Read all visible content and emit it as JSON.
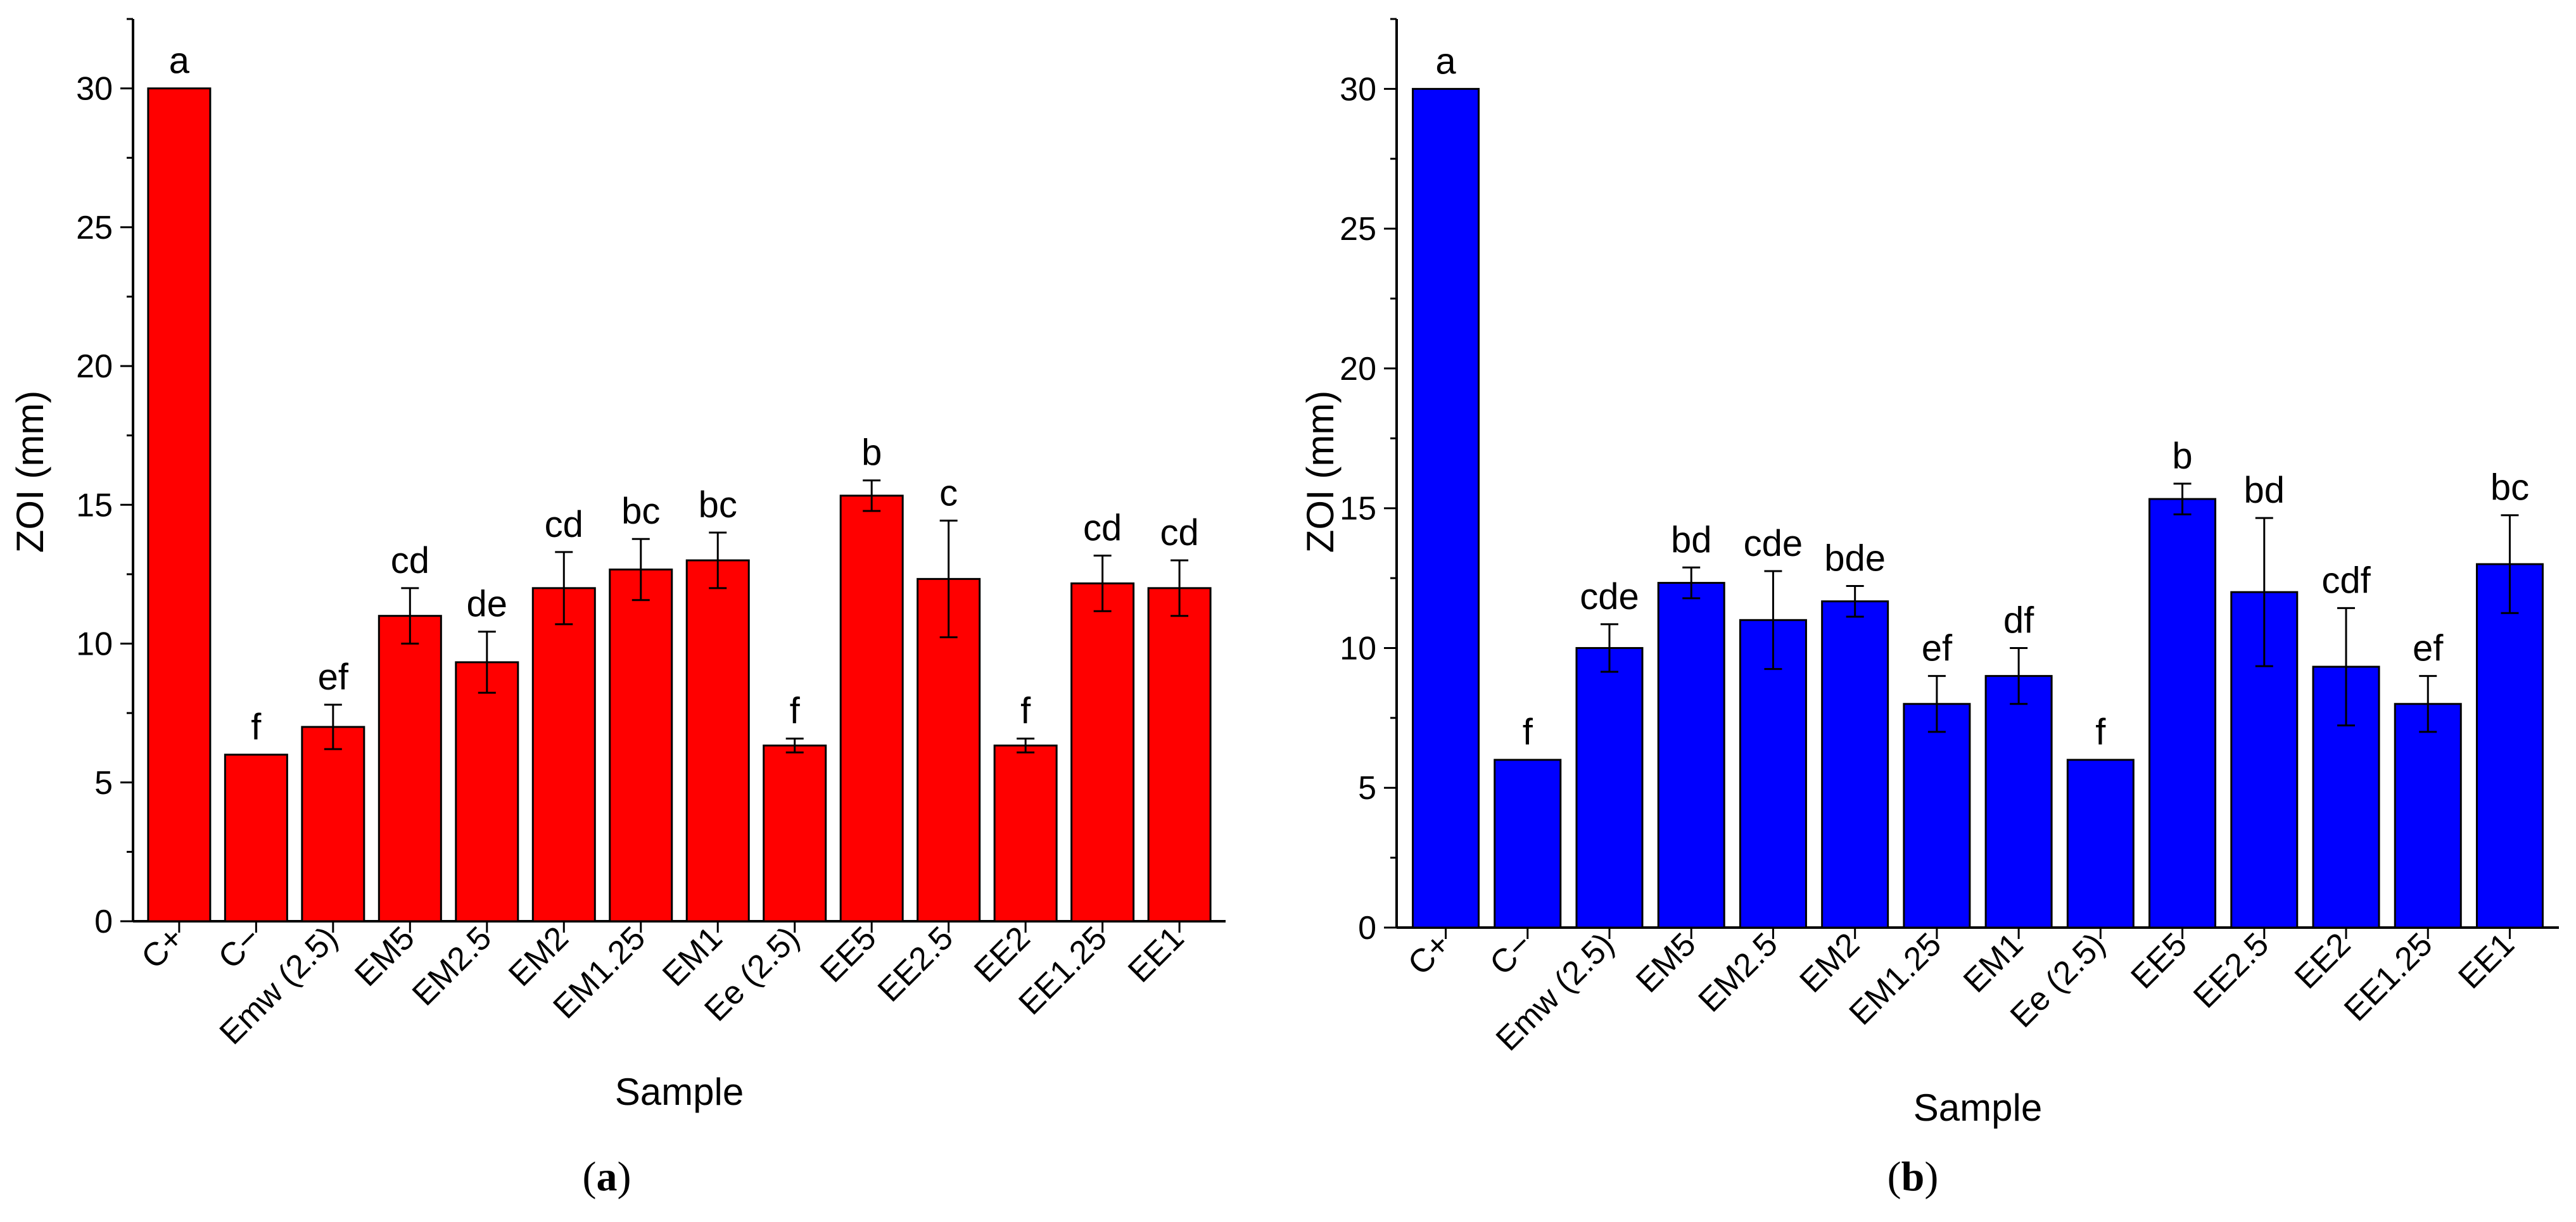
{
  "chart_data": [
    {
      "panel": "(a)",
      "panel_letter": "a",
      "type": "bar",
      "xlabel": "Sample",
      "ylabel": "ZOI (mm)",
      "ylim": [
        0,
        32.5
      ],
      "yticks": [
        0,
        5,
        10,
        15,
        20,
        25,
        30
      ],
      "bar_color": "#ff0000",
      "categories": [
        "C+",
        "C−",
        "Emw (2.5)",
        "EM5",
        "EM2.5",
        "EM2",
        "EM1.25",
        "EM1",
        "Ee (2.5)",
        "EE5",
        "EE2.5",
        "EE2",
        "EE1.25",
        "EE1"
      ],
      "values": [
        30,
        6,
        7,
        11,
        9.33,
        12,
        12.67,
        13,
        6.33,
        15.33,
        12.33,
        6.33,
        12.17,
        12
      ],
      "errors": [
        0,
        0,
        0.8,
        1.0,
        1.1,
        1.3,
        1.1,
        1.0,
        0.25,
        0.55,
        2.1,
        0.25,
        1.0,
        1.0
      ],
      "significance": [
        "a",
        "f",
        "ef",
        "cd",
        "de",
        "cd",
        "bc",
        "bc",
        "f",
        "b",
        "c",
        "f",
        "cd",
        "cd"
      ]
    },
    {
      "panel": "(b)",
      "panel_letter": "b",
      "type": "bar",
      "xlabel": "Sample",
      "ylabel": "ZOI (mm)",
      "ylim": [
        0,
        32.5
      ],
      "yticks": [
        0,
        5,
        10,
        15,
        20,
        25,
        30
      ],
      "bar_color": "#0000ff",
      "categories": [
        "C+",
        "C−",
        "Emw (2.5)",
        "EM5",
        "EM2.5",
        "EM2",
        "EM1.25",
        "EM1",
        "Ee (2.5)",
        "EE5",
        "EE2.5",
        "EE2",
        "EE1.25",
        "EE1"
      ],
      "values": [
        30,
        6,
        10,
        12.33,
        11,
        11.67,
        8,
        9,
        6,
        15.33,
        12,
        9.33,
        8,
        13
      ],
      "errors": [
        0,
        0,
        0.85,
        0.55,
        1.75,
        0.55,
        1.0,
        1.0,
        0,
        0.55,
        2.65,
        2.1,
        1.0,
        1.75
      ],
      "significance": [
        "a",
        "f",
        "cde",
        "bd",
        "cde",
        "bde",
        "ef",
        "df",
        "f",
        "b",
        "bd",
        "cdf",
        "ef",
        "bc"
      ]
    }
  ]
}
